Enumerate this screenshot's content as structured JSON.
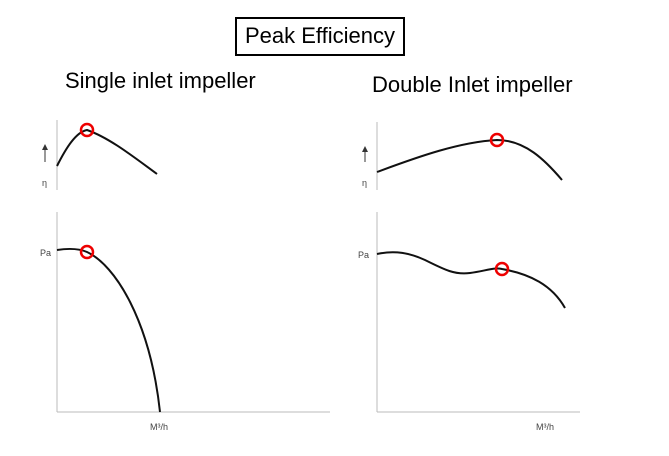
{
  "title": "Peak Efficiency",
  "panels": [
    {
      "heading": "Single inlet impeller",
      "efficiency_label": "η",
      "pressure_label": "Pa",
      "flow_label": "M³/h"
    },
    {
      "heading": "Double Inlet impeller",
      "efficiency_label": "η",
      "pressure_label": "Pa",
      "flow_label": "M³/h"
    }
  ]
}
